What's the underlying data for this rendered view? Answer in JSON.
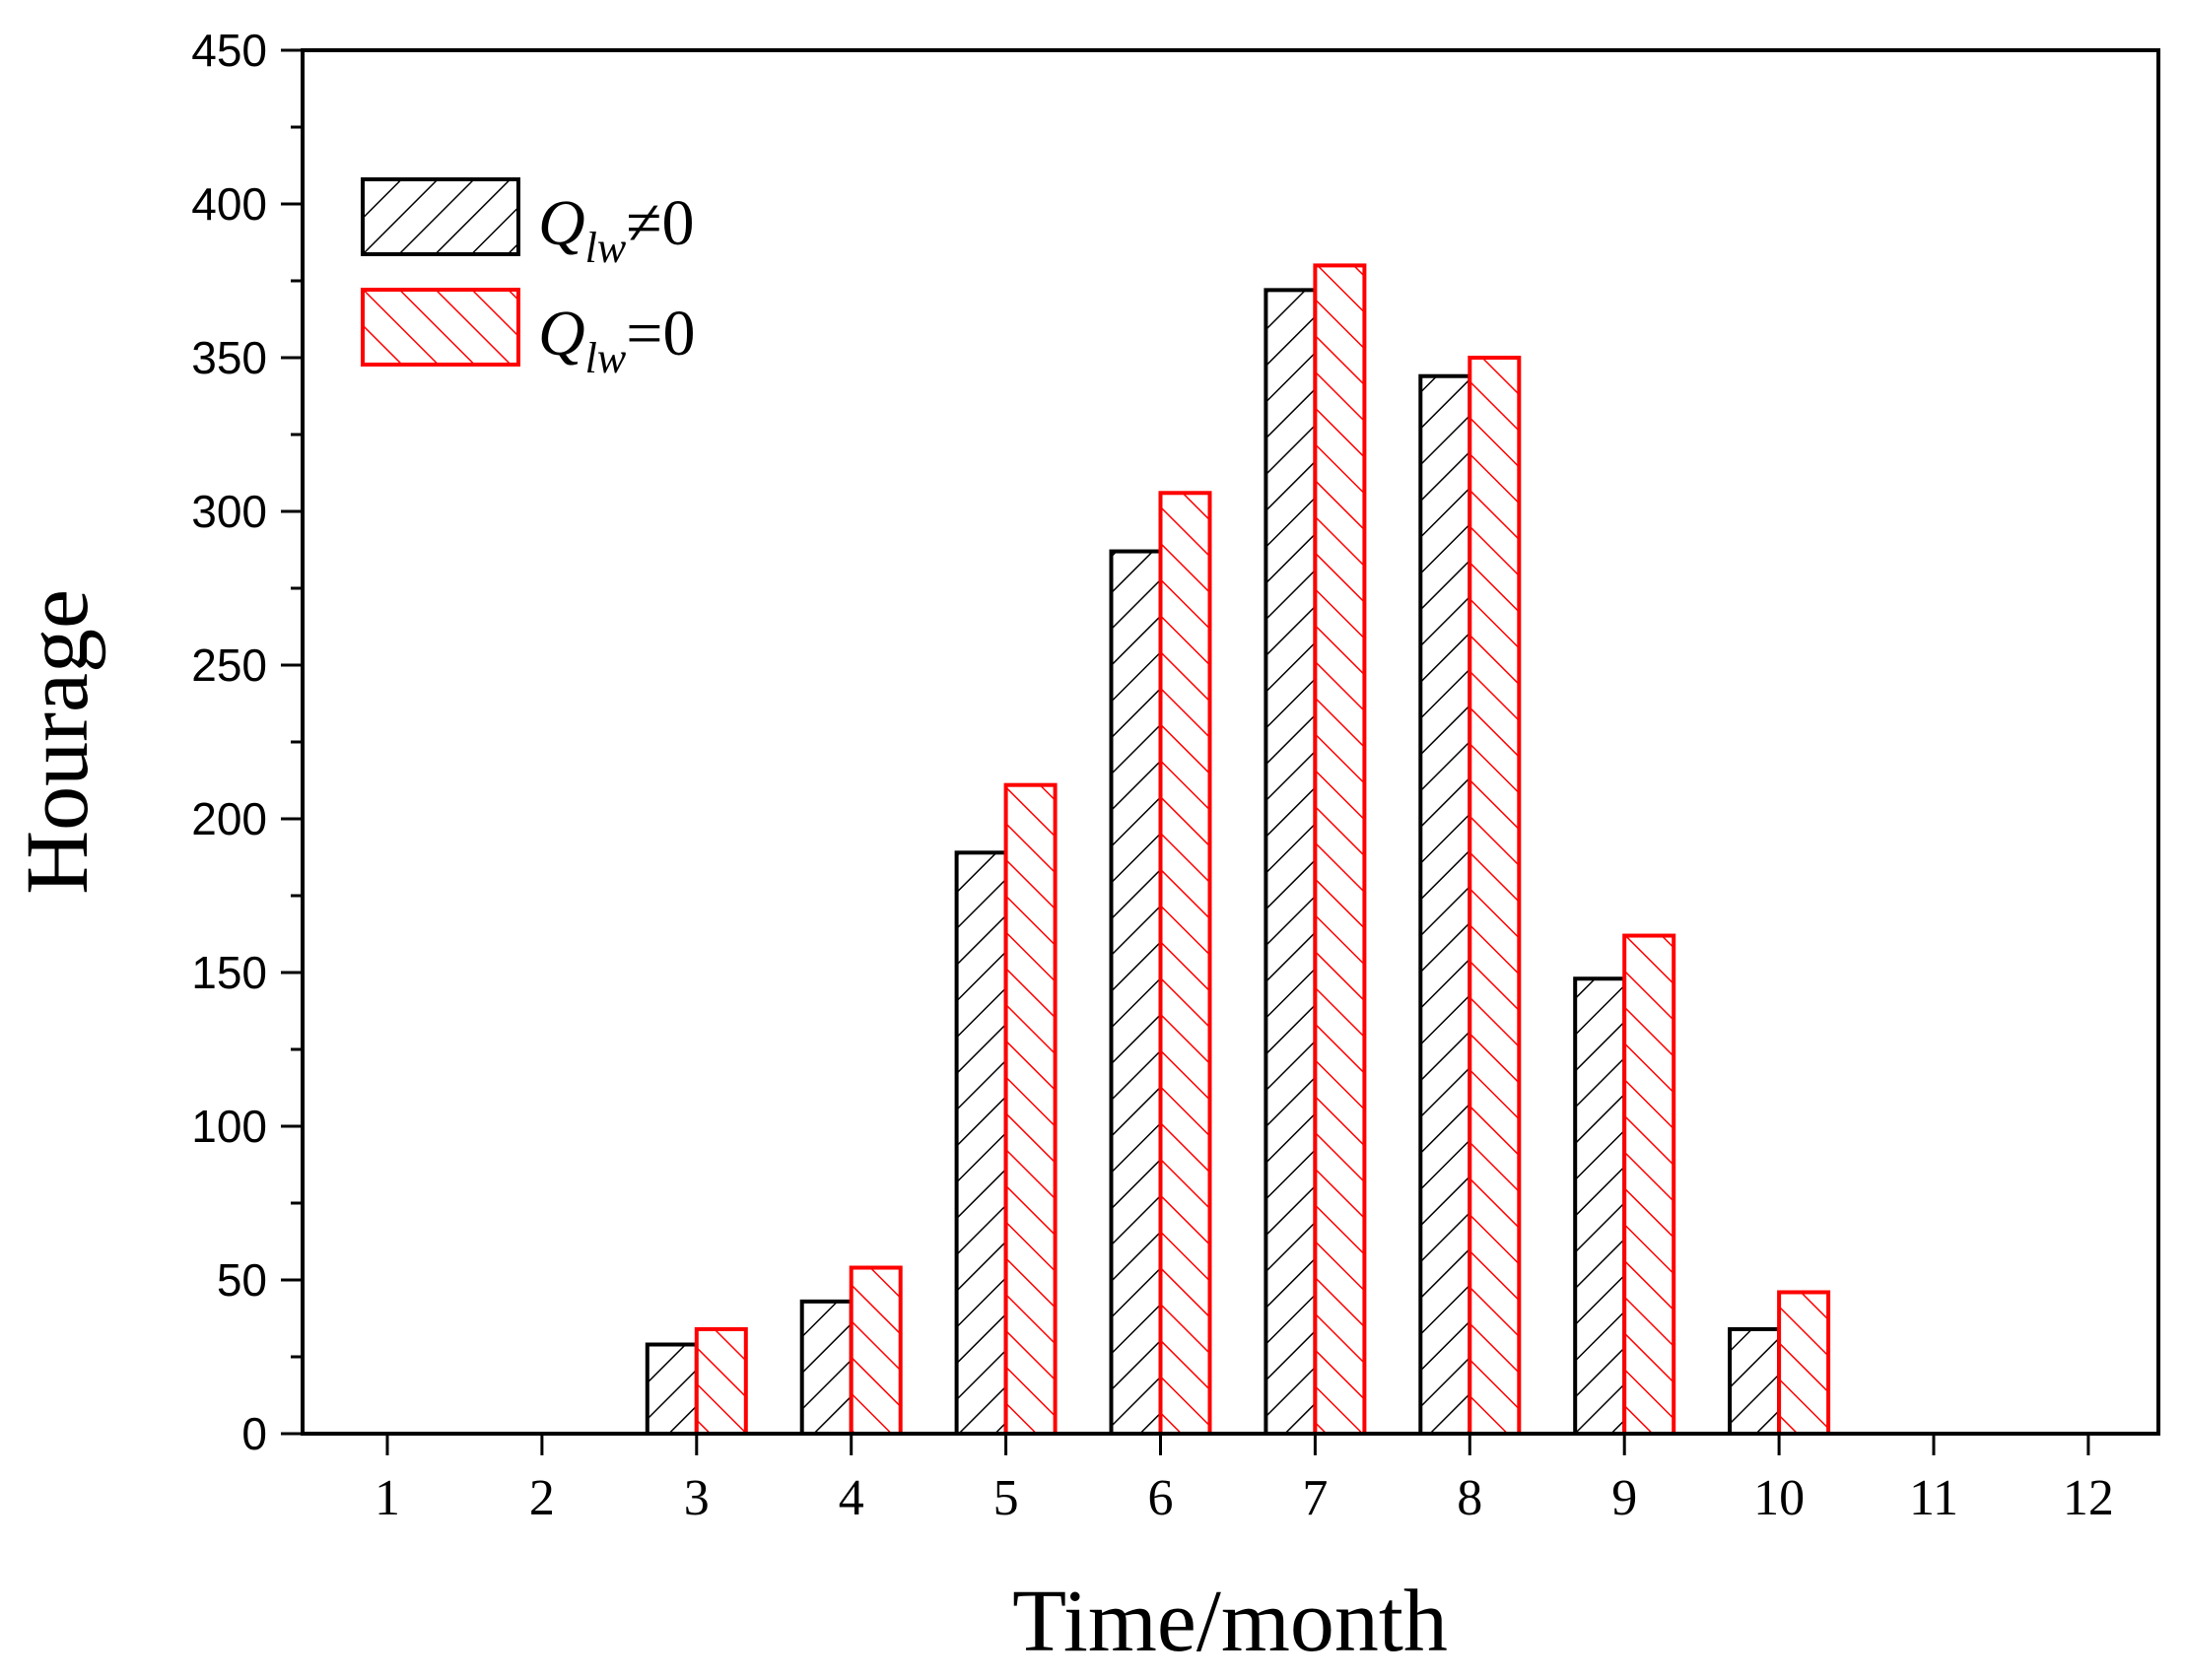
{
  "chart_data": {
    "type": "bar",
    "title": "",
    "xlabel": "Time/month",
    "ylabel": "Hourage",
    "ylim": [
      0,
      450
    ],
    "yticks": [
      0,
      50,
      100,
      150,
      200,
      250,
      300,
      350,
      400,
      450
    ],
    "categories": [
      "1",
      "2",
      "3",
      "4",
      "5",
      "6",
      "7",
      "8",
      "9",
      "10",
      "11",
      "12"
    ],
    "series": [
      {
        "name": "Q_lw≠0",
        "name_main": "Q",
        "name_sub": "lw",
        "name_rest": "≠0",
        "color": "#000000",
        "hatch": "forward",
        "values": [
          0,
          0,
          29,
          43,
          189,
          287,
          372,
          344,
          148,
          34,
          0,
          0
        ]
      },
      {
        "name": "Q_lw=0",
        "name_main": "Q",
        "name_sub": "lw",
        "name_rest": "=0",
        "color": "#ff0000",
        "hatch": "backward",
        "values": [
          0,
          0,
          34,
          54,
          211,
          306,
          380,
          350,
          162,
          46,
          0,
          0
        ]
      }
    ],
    "legend_position": "top-left",
    "grid": false
  }
}
